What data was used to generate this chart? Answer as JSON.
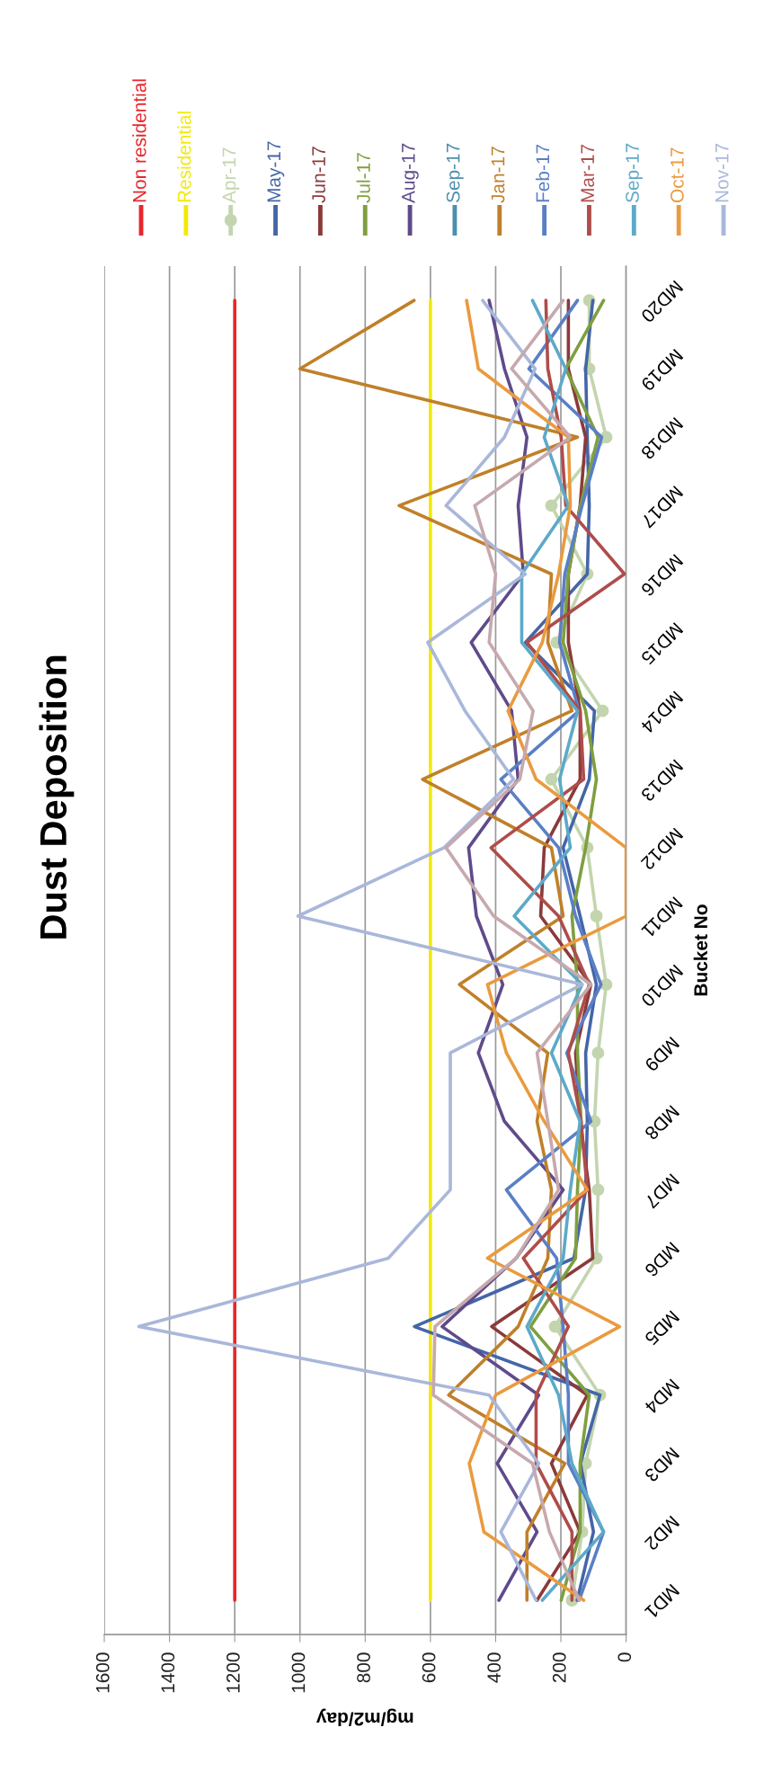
{
  "chart_data": {
    "type": "line",
    "title": "Dust Deposition",
    "xlabel": "mg/m2/day",
    "ylabel": "Bucket No",
    "orientation": "horizontal",
    "categories": [
      "MD20",
      "MD19",
      "MD18",
      "MD17",
      "MD16",
      "MD15",
      "MD14",
      "MD13",
      "MD12",
      "MD11",
      "MD10",
      "MD9",
      "MD8",
      "MD7",
      "MD6",
      "MD5",
      "MD4",
      "MD3",
      "MD2",
      "MD1"
    ],
    "xlim": [
      1600,
      0
    ],
    "xticks": [
      1600,
      1400,
      1200,
      1000,
      800,
      600,
      400,
      200,
      0
    ],
    "grid": "x",
    "legend": "top",
    "marker": "none",
    "series": [
      {
        "name": "Non residential",
        "color": "#e8262b",
        "values": [
          1200,
          1200,
          1200,
          1200,
          1200,
          1200,
          1200,
          1200,
          1200,
          1200,
          1200,
          1200,
          1200,
          1200,
          1200,
          1200,
          1200,
          1200,
          1200,
          1200
        ]
      },
      {
        "name": "Residential",
        "color": "#f2ea06",
        "values": [
          600,
          600,
          600,
          600,
          600,
          600,
          600,
          600,
          600,
          600,
          600,
          600,
          600,
          600,
          600,
          600,
          600,
          600,
          600,
          600
        ]
      },
      {
        "name": "Apr-17",
        "color": "#c3d5ae",
        "marker": "circle",
        "values": [
          113,
          113,
          61,
          229,
          119,
          213,
          72,
          229,
          119,
          91,
          61,
          86,
          97,
          86,
          91,
          218,
          80,
          124,
          135,
          166
        ]
      },
      {
        "name": "May-17",
        "color": "#4466a8",
        "values": [
          102,
          124,
          119,
          113,
          119,
          309,
          97,
          113,
          193,
          141,
          91,
          124,
          119,
          124,
          160,
          649,
          80,
          140,
          100,
          150
        ]
      },
      {
        "name": "Jun-17",
        "color": "#8b3a3a",
        "values": [
          177,
          177,
          124,
          141,
          177,
          177,
          141,
          141,
          251,
          262,
          108,
          155,
          141,
          113,
          102,
          412,
          119,
          229,
          141,
          273
        ]
      },
      {
        "name": "Jul-17",
        "color": "#7f9f3f",
        "values": [
          69,
          185,
          86,
          140,
          177,
          193,
          124,
          91,
          124,
          166,
          149,
          149,
          138,
          149,
          155,
          293,
          113,
          141,
          141,
          199
        ]
      },
      {
        "name": "Aug-17",
        "color": "#5f4b8b",
        "values": [
          420,
          373,
          304,
          331,
          315,
          475,
          351,
          331,
          483,
          459,
          378,
          453,
          373,
          193,
          337,
          564,
          268,
          395,
          273,
          390
        ]
      },
      {
        "name": "Sep-17",
        "color": "#4b8faf",
        "values": [
          null,
          null,
          null,
          null,
          null,
          null,
          null,
          null,
          null,
          null,
          null,
          null,
          null,
          null,
          null,
          null,
          null,
          null,
          null,
          null
        ]
      },
      {
        "name": "Jan-17",
        "color": "#c0802a",
        "values": [
          650,
          1000,
          149,
          696,
          229,
          240,
          166,
          624,
          229,
          193,
          511,
          240,
          273,
          229,
          240,
          331,
          544,
          188,
          304,
          304
        ]
      },
      {
        "name": "Feb-17",
        "color": "#5a7fc6",
        "values": [
          149,
          298,
          75,
          135,
          188,
          204,
          144,
          384,
          207,
          155,
          77,
          182,
          108,
          367,
          213,
          193,
          177,
          177,
          69,
          144
        ]
      },
      {
        "name": "Mar-17",
        "color": "#ae4d4b",
        "values": [
          246,
          240,
          199,
          185,
          5,
          304,
          141,
          130,
          414,
          207,
          113,
          177,
          138,
          119,
          315,
          177,
          276,
          276,
          166,
          166
        ]
      },
      {
        "name": "Sep-17",
        "color": "#5da9c9",
        "values": [
          287,
          185,
          251,
          177,
          320,
          320,
          149,
          204,
          171,
          343,
          135,
          229,
          141,
          171,
          193,
          304,
          207,
          166,
          69,
          257
        ]
      },
      {
        "name": "Oct-17",
        "color": "#e99b3f",
        "values": [
          489,
          453,
          177,
          171,
          207,
          257,
          362,
          276,
          0,
          0,
          425,
          367,
          251,
          119,
          425,
          20,
          400,
          481,
          436,
          130
        ]
      },
      {
        "name": "Nov-17",
        "color": "#a9b7da",
        "values": [
          440,
          279,
          373,
          552,
          309,
          608,
          494,
          345,
          558,
          1006,
          135,
          539,
          539,
          539,
          729,
          1494,
          420,
          268,
          384,
          276
        ]
      },
      {
        "color": "#c6a9ae",
        "values": [
          193,
          351,
          171,
          464,
          400,
          420,
          285,
          326,
          552,
          406,
          108,
          273,
          240,
          207,
          337,
          586,
          591,
          287,
          235,
          144
        ]
      }
    ]
  }
}
